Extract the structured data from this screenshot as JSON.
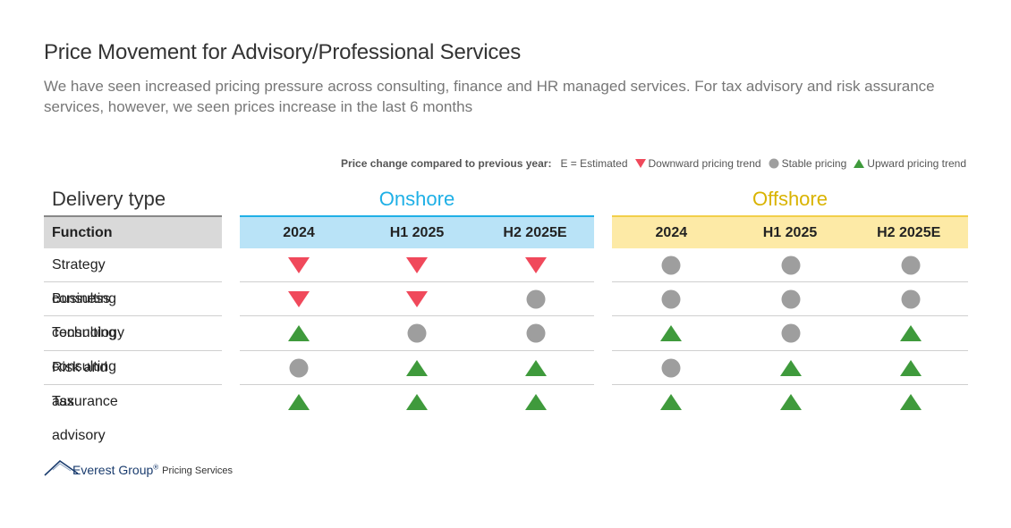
{
  "title": "Price Movement for Advisory/Professional Services",
  "subtitle": "We have seen increased pricing pressure across consulting, finance and HR managed services. For tax advisory and risk assurance services, however, we seen prices increase in the last 6 months",
  "legend": {
    "label": "Price change compared to previous year:",
    "estimated": "E = Estimated",
    "down": "Downward pricing trend",
    "stable": "Stable pricing",
    "up": "Upward pricing trend"
  },
  "colors": {
    "down": "#f0495b",
    "stable": "#9e9e9e",
    "up": "#3f9a3c",
    "onshore": "#1fb0e6",
    "offshore": "#d9b300"
  },
  "table": {
    "delivery_label": "Delivery type",
    "function_label": "Function",
    "onshore": {
      "label": "Onshore",
      "columns": [
        "2024",
        "H1 2025",
        "H2 2025E"
      ]
    },
    "offshore": {
      "label": "Offshore",
      "columns": [
        "2024",
        "H1 2025",
        "H2 2025E"
      ]
    },
    "rows": [
      {
        "function": "Strategy consulting",
        "onshore": [
          "down",
          "down",
          "down"
        ],
        "offshore": [
          "stable",
          "stable",
          "stable"
        ]
      },
      {
        "function": "Business consulting",
        "onshore": [
          "down",
          "down",
          "stable"
        ],
        "offshore": [
          "stable",
          "stable",
          "stable"
        ]
      },
      {
        "function": "Technology consulting",
        "onshore": [
          "up",
          "stable",
          "stable"
        ],
        "offshore": [
          "up",
          "stable",
          "up"
        ]
      },
      {
        "function": "Risk and assurance",
        "onshore": [
          "stable",
          "up",
          "up"
        ],
        "offshore": [
          "stable",
          "up",
          "up"
        ]
      },
      {
        "function": "Tax advisory",
        "onshore": [
          "up",
          "up",
          "up"
        ],
        "offshore": [
          "up",
          "up",
          "up"
        ]
      }
    ]
  },
  "footer": {
    "brand": "Everest Group",
    "reg": "®",
    "service": "Pricing Services"
  }
}
